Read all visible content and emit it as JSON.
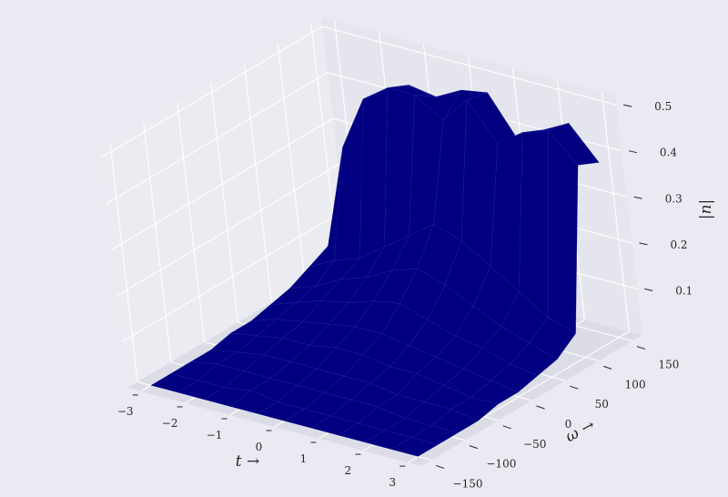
{
  "chart_data": {
    "type": "surface3d",
    "title": "",
    "xlabel": "t →",
    "ylabel": "ω →",
    "zlabel": "|u|",
    "xlim": [
      -3.3,
      3.3
    ],
    "ylim": [
      -165,
      165
    ],
    "zlim": [
      0.0,
      0.52
    ],
    "x_ticks": [
      "−3",
      "−2",
      "−1",
      "0",
      "1",
      "2",
      "3"
    ],
    "y_ticks": [
      "−150",
      "−100",
      "−50",
      "0",
      "50",
      "100",
      "150"
    ],
    "z_ticks": [
      "0.1",
      "0.2",
      "0.3",
      "0.4",
      "0.5"
    ],
    "surface_color": "#000080",
    "pane_color": "#e5e5ee",
    "background_color": "#eaeaf2",
    "grid": true,
    "x": [
      -3.0,
      -2.4,
      -1.8,
      -1.2,
      -0.6,
      0.0,
      0.6,
      1.2,
      1.8,
      2.4,
      3.0
    ],
    "y": [
      -150,
      -120,
      -90,
      -60,
      -30,
      0,
      30,
      60,
      90,
      120,
      150
    ],
    "z": [
      [
        0.0,
        0.0,
        0.0,
        0.0,
        0.01,
        0.01,
        0.02,
        0.03,
        0.05,
        0.07,
        0.06
      ],
      [
        0.0,
        0.0,
        0.01,
        0.01,
        0.02,
        0.03,
        0.04,
        0.05,
        0.08,
        0.3,
        0.2
      ],
      [
        0.0,
        0.0,
        0.01,
        0.02,
        0.03,
        0.04,
        0.06,
        0.08,
        0.1,
        0.42,
        0.4
      ],
      [
        0.0,
        0.01,
        0.01,
        0.02,
        0.03,
        0.05,
        0.07,
        0.1,
        0.14,
        0.46,
        0.44
      ],
      [
        0.0,
        0.0,
        0.01,
        0.02,
        0.04,
        0.06,
        0.09,
        0.13,
        0.18,
        0.46,
        0.43
      ],
      [
        0.0,
        0.0,
        0.01,
        0.02,
        0.04,
        0.06,
        0.1,
        0.15,
        0.22,
        0.42,
        0.46
      ],
      [
        0.0,
        0.0,
        0.01,
        0.02,
        0.03,
        0.05,
        0.08,
        0.13,
        0.2,
        0.48,
        0.47
      ],
      [
        0.0,
        0.0,
        0.01,
        0.01,
        0.03,
        0.04,
        0.06,
        0.1,
        0.16,
        0.4,
        0.38
      ],
      [
        0.0,
        0.0,
        0.0,
        0.01,
        0.02,
        0.03,
        0.05,
        0.07,
        0.12,
        0.44,
        0.42
      ],
      [
        0.0,
        0.0,
        0.0,
        0.01,
        0.01,
        0.02,
        0.03,
        0.05,
        0.08,
        0.46,
        0.45
      ],
      [
        0.0,
        0.0,
        0.0,
        0.0,
        0.01,
        0.01,
        0.02,
        0.03,
        0.06,
        0.4,
        0.38
      ]
    ]
  }
}
